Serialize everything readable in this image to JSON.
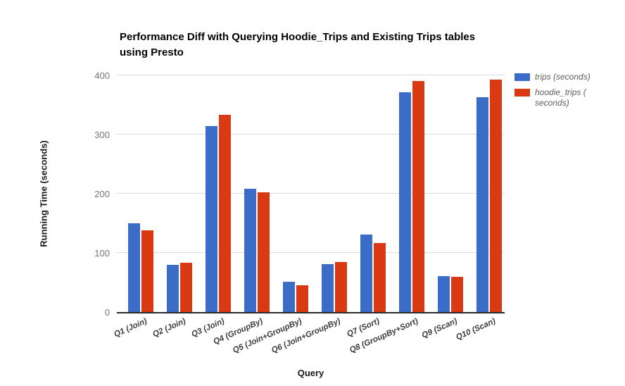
{
  "title_lines": [
    "Performance Diff with Querying Hoodie_Trips and Existing Trips tables",
    "using Presto"
  ],
  "chart_data": {
    "type": "bar",
    "title": "Performance Diff with Querying Hoodie_Trips and Existing Trips tables using Presto",
    "xlabel": "Query",
    "ylabel": "Running Time (seconds)",
    "ylim": [
      0,
      400
    ],
    "y_ticks": [
      0,
      100,
      200,
      300,
      400
    ],
    "grid": true,
    "legend_position": "right",
    "categories": [
      "Q1 (Join)",
      "Q2 (Join)",
      "Q3 (Join)",
      "Q4 (GroupBy)",
      "Q5 (Join+GroupBy)",
      "Q6 (Join+GroupBy)",
      "Q7 (Sort)",
      "Q8 (GroupBy+Sort)",
      "Q9 (Scan)",
      "Q10 (Scan)"
    ],
    "series": [
      {
        "name": "trips (seconds)",
        "color": "#3b6cc8",
        "values": [
          150,
          80,
          314,
          208,
          51,
          81,
          131,
          371,
          61,
          363
        ]
      },
      {
        "name": "hoodie_trips ( seconds)",
        "color": "#da3a13",
        "values": [
          138,
          83,
          333,
          202,
          45,
          85,
          117,
          390,
          59,
          393
        ]
      }
    ]
  },
  "colors": {
    "gridline": "#d9d9d9",
    "axis_line": "#2b2b2b",
    "tick_label": "#757575"
  }
}
